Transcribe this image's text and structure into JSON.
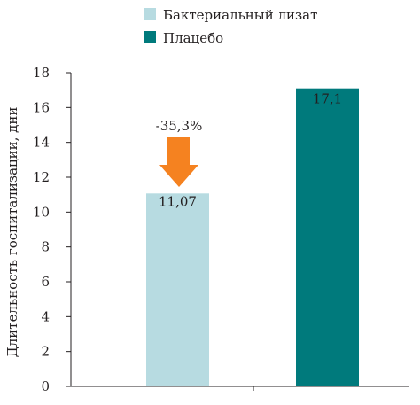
{
  "chart_data": {
    "type": "bar",
    "categories": [
      "",
      ""
    ],
    "series": [
      {
        "name": "Бактериальный лизат",
        "color": "#b7dbe1",
        "values": [
          11.07,
          null
        ]
      },
      {
        "name": "Плацебо",
        "color": "#007a7c",
        "values": [
          null,
          17.1
        ]
      }
    ],
    "data_labels": [
      "11,07",
      "17,1"
    ],
    "annotation": {
      "text": "-35,3%",
      "color": "#f58220",
      "icon": "down-arrow"
    },
    "ylabel": "Длительность госпитализации, дни",
    "xlabel": "",
    "title": "",
    "ylim": [
      0,
      18
    ],
    "yticks": [
      0,
      2,
      4,
      6,
      8,
      10,
      12,
      14,
      16,
      18
    ],
    "ytick_labels": [
      "0",
      "2",
      "4",
      "6",
      "8",
      "10",
      "12",
      "14",
      "16",
      "18"
    ],
    "grid": false,
    "legend_position": "top"
  }
}
